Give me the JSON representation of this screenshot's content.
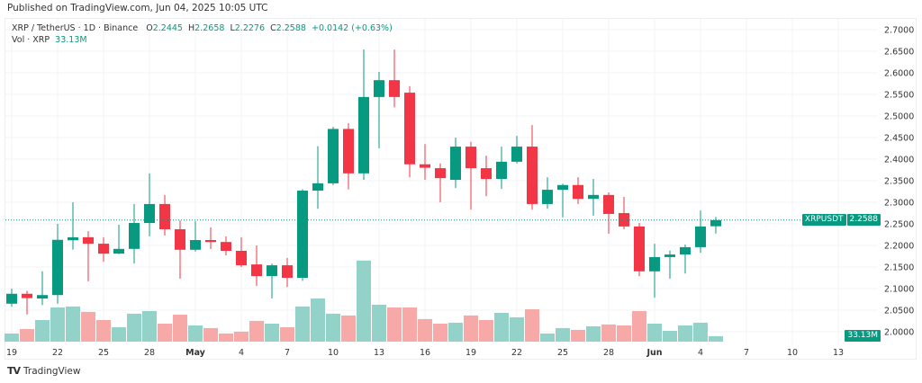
{
  "published": "Published on TradingView.com, Jun 04, 2025 10:05 UTC",
  "legend": {
    "symbol": "XRP / TetherUS · 1D · Binance",
    "o_label": "O",
    "o": "2.2445",
    "h_label": "H",
    "h": "2.2658",
    "l_label": "L",
    "l": "2.2276",
    "c_label": "C",
    "c": "2.2588",
    "change": "+0.0142 (+0.63%)",
    "vol_label": "Vol · XRP",
    "vol": "33.13M"
  },
  "price_tag": {
    "symbol": "XRPUSDT",
    "price": "2.2588"
  },
  "vol_tag": "33.13M",
  "logo_text": "TradingView",
  "colors": {
    "up": "#089981",
    "down": "#f23645",
    "vol_up": "#92d2c9",
    "vol_down": "#f7a9a7",
    "last_price_line": "#089981"
  },
  "chart_data": {
    "type": "candlestick",
    "symbol": "XRPUSDT",
    "interval": "1D",
    "y_ticks": [
      "2.7000",
      "2.6500",
      "2.6000",
      "2.5500",
      "2.5000",
      "2.4500",
      "2.4000",
      "2.3500",
      "2.3000",
      "2.2500",
      "2.2000",
      "2.1500",
      "2.1000",
      "2.0500",
      "2.0000"
    ],
    "ylim": [
      2.0,
      2.7
    ],
    "x_ticks": [
      "19",
      "22",
      "25",
      "28",
      "May",
      "4",
      "7",
      "10",
      "13",
      "16",
      "19",
      "22",
      "25",
      "28",
      "Jun",
      "4",
      "7",
      "10",
      "13"
    ],
    "x_tick_dates": [
      "Apr 19",
      "Apr 22",
      "Apr 25",
      "Apr 28",
      "May 1",
      "May 4",
      "May 7",
      "May 10",
      "May 13",
      "May 16",
      "May 19",
      "May 22",
      "May 25",
      "May 28",
      "Jun 1",
      "Jun 4",
      "Jun 7",
      "Jun 10",
      "Jun 13"
    ],
    "last_price": 2.2588,
    "volume_unit": "M",
    "candles": [
      {
        "date": "Apr 19",
        "o": 2.065,
        "h": 2.1,
        "l": 2.058,
        "c": 2.088,
        "v": 50
      },
      {
        "date": "Apr 20",
        "o": 2.088,
        "h": 2.095,
        "l": 2.04,
        "c": 2.078,
        "v": 77
      },
      {
        "date": "Apr 21",
        "o": 2.077,
        "h": 2.14,
        "l": 2.062,
        "c": 2.085,
        "v": 132
      },
      {
        "date": "Apr 22",
        "o": 2.085,
        "h": 2.25,
        "l": 2.065,
        "c": 2.213,
        "v": 209
      },
      {
        "date": "Apr 23",
        "o": 2.212,
        "h": 2.3,
        "l": 2.19,
        "c": 2.219,
        "v": 215
      },
      {
        "date": "Apr 24",
        "o": 2.219,
        "h": 2.233,
        "l": 2.117,
        "c": 2.204,
        "v": 182
      },
      {
        "date": "Apr 25",
        "o": 2.204,
        "h": 2.219,
        "l": 2.162,
        "c": 2.181,
        "v": 132
      },
      {
        "date": "Apr 26",
        "o": 2.181,
        "h": 2.248,
        "l": 2.18,
        "c": 2.192,
        "v": 88
      },
      {
        "date": "Apr 27",
        "o": 2.192,
        "h": 2.296,
        "l": 2.158,
        "c": 2.252,
        "v": 171
      },
      {
        "date": "Apr 28",
        "o": 2.252,
        "h": 2.367,
        "l": 2.221,
        "c": 2.296,
        "v": 187
      },
      {
        "date": "Apr 29",
        "o": 2.296,
        "h": 2.317,
        "l": 2.223,
        "c": 2.2375,
        "v": 110
      },
      {
        "date": "Apr 30",
        "o": 2.2375,
        "h": 2.258,
        "l": 2.123,
        "c": 2.19,
        "v": 165
      },
      {
        "date": "May 1",
        "o": 2.19,
        "h": 2.256,
        "l": 2.186,
        "c": 2.2125,
        "v": 99
      },
      {
        "date": "May 2",
        "o": 2.2125,
        "h": 2.242,
        "l": 2.192,
        "c": 2.208,
        "v": 83
      },
      {
        "date": "May 3",
        "o": 2.208,
        "h": 2.221,
        "l": 2.177,
        "c": 2.1875,
        "v": 50
      },
      {
        "date": "May 4",
        "o": 2.1875,
        "h": 2.219,
        "l": 2.15,
        "c": 2.154,
        "v": 61
      },
      {
        "date": "May 5",
        "o": 2.156,
        "h": 2.2,
        "l": 2.106,
        "c": 2.129,
        "v": 127
      },
      {
        "date": "May 6",
        "o": 2.129,
        "h": 2.158,
        "l": 2.077,
        "c": 2.154,
        "v": 110
      },
      {
        "date": "May 7",
        "o": 2.154,
        "h": 2.171,
        "l": 2.104,
        "c": 2.125,
        "v": 88
      },
      {
        "date": "May 8",
        "o": 2.125,
        "h": 2.33,
        "l": 2.118,
        "c": 2.327,
        "v": 215
      },
      {
        "date": "May 9",
        "o": 2.327,
        "h": 2.43,
        "l": 2.285,
        "c": 2.344,
        "v": 264
      },
      {
        "date": "May 10",
        "o": 2.344,
        "h": 2.475,
        "l": 2.34,
        "c": 2.47,
        "v": 171
      },
      {
        "date": "May 11",
        "o": 2.47,
        "h": 2.483,
        "l": 2.33,
        "c": 2.367,
        "v": 160
      },
      {
        "date": "May 12",
        "o": 2.367,
        "h": 2.654,
        "l": 2.352,
        "c": 2.544,
        "v": 496
      },
      {
        "date": "May 13",
        "o": 2.544,
        "h": 2.602,
        "l": 2.425,
        "c": 2.583,
        "v": 226
      },
      {
        "date": "May 14",
        "o": 2.583,
        "h": 2.654,
        "l": 2.52,
        "c": 2.544,
        "v": 209
      },
      {
        "date": "May 15",
        "o": 2.554,
        "h": 2.569,
        "l": 2.358,
        "c": 2.388,
        "v": 209
      },
      {
        "date": "May 16",
        "o": 2.388,
        "h": 2.435,
        "l": 2.352,
        "c": 2.38,
        "v": 138
      },
      {
        "date": "May 17",
        "o": 2.379,
        "h": 2.39,
        "l": 2.3,
        "c": 2.356,
        "v": 110
      },
      {
        "date": "May 18",
        "o": 2.352,
        "h": 2.45,
        "l": 2.333,
        "c": 2.429,
        "v": 116
      },
      {
        "date": "May 19",
        "o": 2.429,
        "h": 2.44,
        "l": 2.283,
        "c": 2.379,
        "v": 160
      },
      {
        "date": "May 20",
        "o": 2.379,
        "h": 2.408,
        "l": 2.314,
        "c": 2.354,
        "v": 132
      },
      {
        "date": "May 21",
        "o": 2.354,
        "h": 2.429,
        "l": 2.331,
        "c": 2.394,
        "v": 176
      },
      {
        "date": "May 22",
        "o": 2.394,
        "h": 2.454,
        "l": 2.39,
        "c": 2.429,
        "v": 149
      },
      {
        "date": "May 23",
        "o": 2.429,
        "h": 2.479,
        "l": 2.283,
        "c": 2.296,
        "v": 198
      },
      {
        "date": "May 24",
        "o": 2.296,
        "h": 2.358,
        "l": 2.285,
        "c": 2.329,
        "v": 50
      },
      {
        "date": "May 25",
        "o": 2.329,
        "h": 2.343,
        "l": 2.265,
        "c": 2.34,
        "v": 83
      },
      {
        "date": "May 26",
        "o": 2.34,
        "h": 2.358,
        "l": 2.296,
        "c": 2.308,
        "v": 72
      },
      {
        "date": "May 27",
        "o": 2.308,
        "h": 2.354,
        "l": 2.269,
        "c": 2.317,
        "v": 94
      },
      {
        "date": "May 28",
        "o": 2.317,
        "h": 2.323,
        "l": 2.227,
        "c": 2.273,
        "v": 105
      },
      {
        "date": "May 29",
        "o": 2.275,
        "h": 2.3125,
        "l": 2.2375,
        "c": 2.244,
        "v": 99
      },
      {
        "date": "May 30",
        "o": 2.244,
        "h": 2.252,
        "l": 2.129,
        "c": 2.14,
        "v": 187
      },
      {
        "date": "May 31",
        "o": 2.14,
        "h": 2.204,
        "l": 2.079,
        "c": 2.173,
        "v": 110
      },
      {
        "date": "Jun 1",
        "o": 2.173,
        "h": 2.188,
        "l": 2.123,
        "c": 2.179,
        "v": 66
      },
      {
        "date": "Jun 2",
        "o": 2.179,
        "h": 2.202,
        "l": 2.135,
        "c": 2.196,
        "v": 99
      },
      {
        "date": "Jun 3",
        "o": 2.196,
        "h": 2.281,
        "l": 2.183,
        "c": 2.244,
        "v": 116
      },
      {
        "date": "Jun 4",
        "o": 2.2445,
        "h": 2.2658,
        "l": 2.2276,
        "c": 2.2588,
        "v": 33.13
      }
    ]
  }
}
